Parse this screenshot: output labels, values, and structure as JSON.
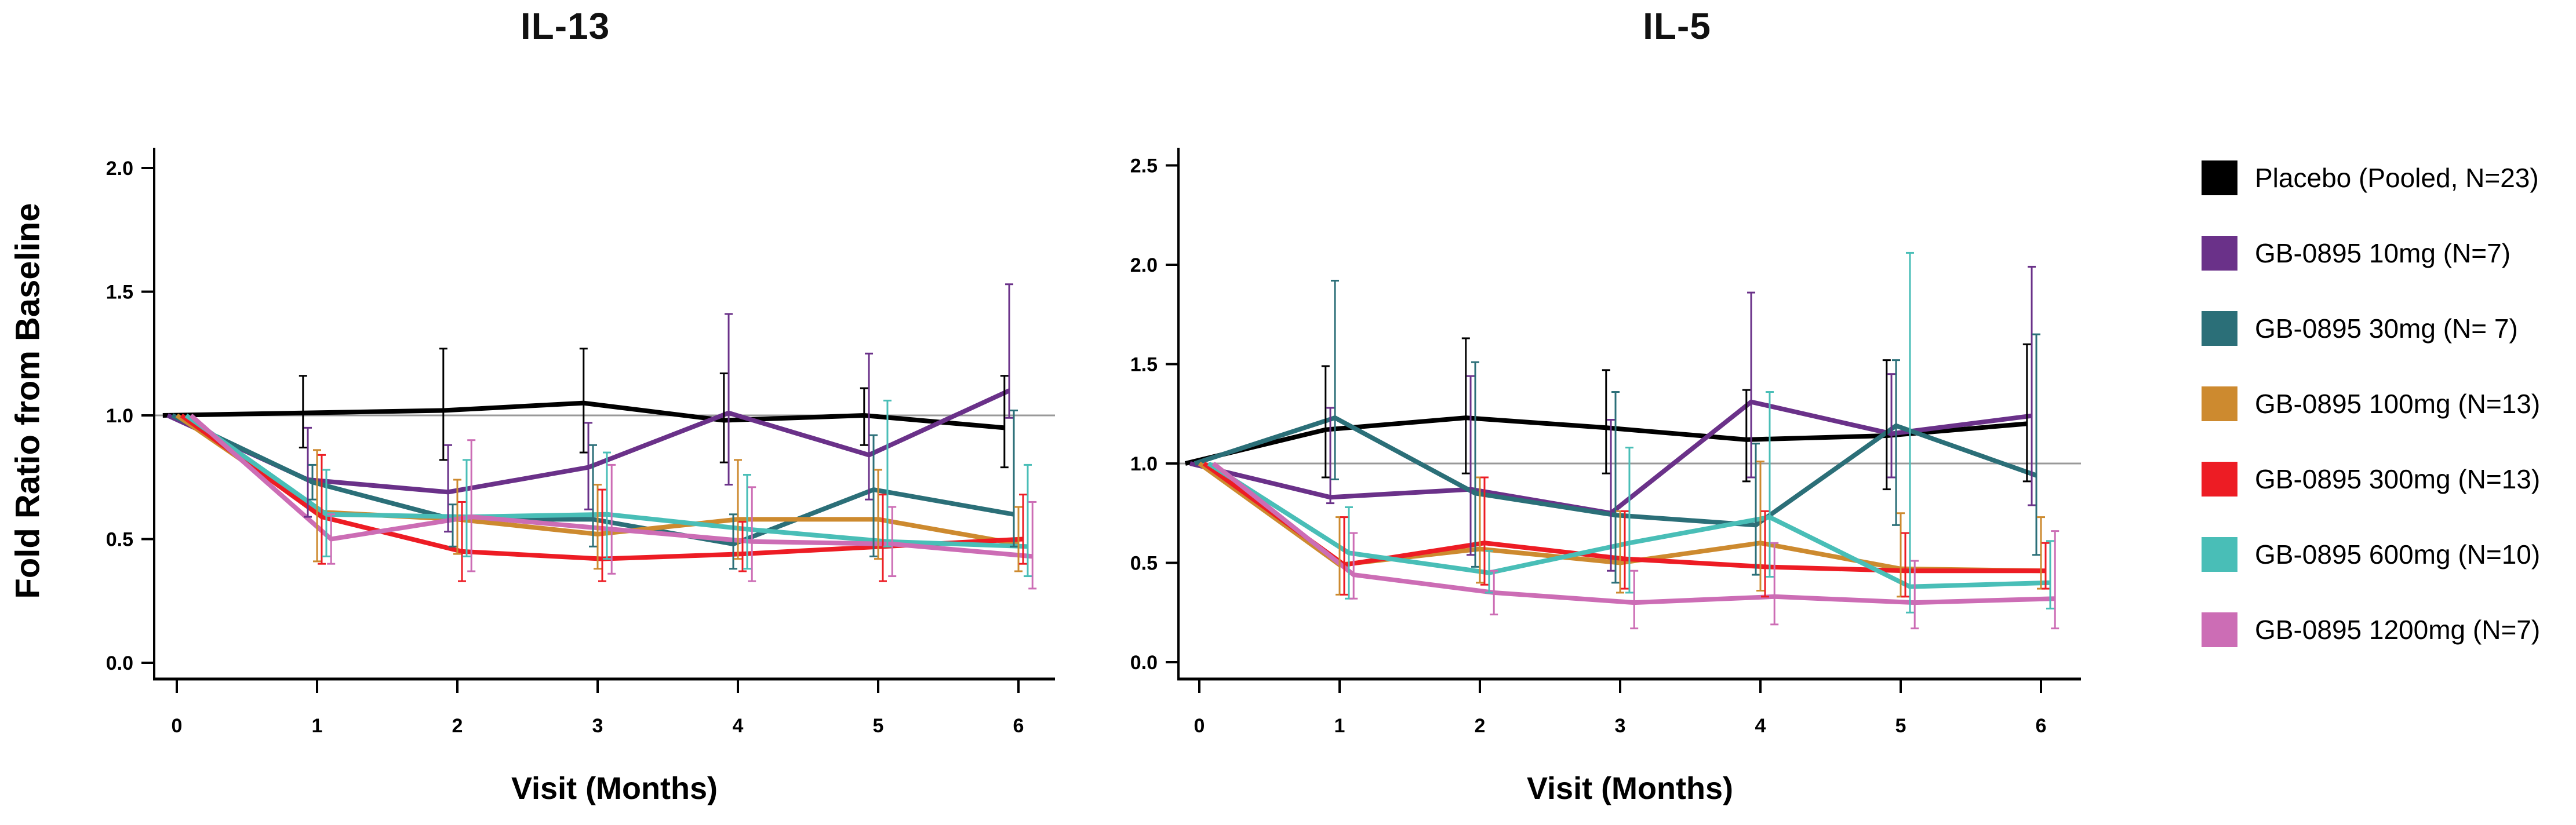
{
  "figure": {
    "y_axis_label": "Fold Ratio from Baseline",
    "background_color": "#ffffff",
    "reference_line_color": "#999999",
    "axis_color": "#000000"
  },
  "legend": {
    "items": [
      {
        "key": "placebo",
        "label": "Placebo (Pooled, N=23)",
        "color": "#000000"
      },
      {
        "key": "gb0895-10mg",
        "label": "GB-0895 10mg (N=7)",
        "color": "#6A3189"
      },
      {
        "key": "gb0895-30mg",
        "label": "GB-0895 30mg (N= 7)",
        "color": "#2B6F78"
      },
      {
        "key": "gb0895-100mg",
        "label": "GB-0895 100mg (N=13)",
        "color": "#CD8A2F"
      },
      {
        "key": "gb0895-300mg",
        "label": "GB-0895 300mg (N=13)",
        "color": "#ED1C24"
      },
      {
        "key": "gb0895-600mg",
        "label": "GB-0895 600mg (N=10)",
        "color": "#49BEB7"
      },
      {
        "key": "gb0895-1200mg",
        "label": "GB-0895 1200mg (N=7)",
        "color": "#CC6DB5"
      }
    ]
  },
  "chart_data": [
    {
      "type": "line",
      "title": "IL-13",
      "xlabel": "Visit (Months)",
      "ylabel": "Fold Ratio from Baseline",
      "x": [
        0,
        1,
        2,
        3,
        4,
        5,
        6
      ],
      "xtick_labels": [
        "0",
        "1",
        "2",
        "3",
        "4",
        "5",
        "6"
      ],
      "yticks": [
        0.0,
        0.5,
        1.0,
        1.5,
        2.0
      ],
      "ytick_labels": [
        "0.0",
        "0.5",
        "1.0",
        "1.5",
        "2.0"
      ],
      "ylim": [
        0,
        2.08
      ],
      "grid": false,
      "reference_line": 1.0,
      "series": [
        {
          "name": "Placebo (Pooled, N=23)",
          "color": "#000000",
          "values": [
            1.0,
            1.01,
            1.02,
            1.05,
            0.98,
            1.0,
            0.95
          ],
          "err_lo": [
            null,
            0.87,
            0.82,
            0.85,
            0.81,
            0.88,
            0.79
          ],
          "err_hi": [
            null,
            1.16,
            1.27,
            1.27,
            1.17,
            1.11,
            1.16
          ]
        },
        {
          "name": "GB-0895 10mg (N=7)",
          "color": "#6A3189",
          "values": [
            1.0,
            0.74,
            0.69,
            0.79,
            1.01,
            0.84,
            1.1
          ],
          "err_lo": [
            null,
            0.59,
            0.53,
            0.62,
            0.72,
            0.66,
            0.99
          ],
          "err_hi": [
            null,
            0.95,
            0.88,
            0.97,
            1.41,
            1.25,
            1.53
          ]
        },
        {
          "name": "GB-0895 30mg (N= 7)",
          "color": "#2B6F78",
          "values": [
            1.0,
            0.73,
            0.58,
            0.58,
            0.48,
            0.7,
            0.6
          ],
          "err_lo": [
            null,
            0.66,
            0.47,
            0.47,
            0.38,
            0.43,
            0.47
          ],
          "err_hi": [
            null,
            0.8,
            0.64,
            0.88,
            0.6,
            0.92,
            1.02
          ]
        },
        {
          "name": "GB-0895 100mg (N=13)",
          "color": "#CD8A2F",
          "values": [
            1.0,
            0.61,
            0.58,
            0.52,
            0.58,
            0.58,
            0.48
          ],
          "err_lo": [
            null,
            0.41,
            0.44,
            0.38,
            0.42,
            0.42,
            0.37
          ],
          "err_hi": [
            null,
            0.86,
            0.74,
            0.72,
            0.82,
            0.78,
            0.63
          ]
        },
        {
          "name": "GB-0895 300mg (N=13)",
          "color": "#ED1C24",
          "values": [
            1.0,
            0.59,
            0.45,
            0.42,
            0.44,
            0.47,
            0.5
          ],
          "err_lo": [
            null,
            0.4,
            0.33,
            0.33,
            0.37,
            0.33,
            0.4
          ],
          "err_hi": [
            null,
            0.84,
            0.65,
            0.7,
            0.57,
            0.68,
            0.68
          ]
        },
        {
          "name": "GB-0895 600mg (N=10)",
          "color": "#49BEB7",
          "values": [
            1.0,
            0.6,
            0.59,
            0.6,
            0.54,
            0.49,
            0.47
          ],
          "err_lo": [
            null,
            0.43,
            0.43,
            0.42,
            0.38,
            0.47,
            0.35
          ],
          "err_hi": [
            null,
            0.78,
            0.82,
            0.85,
            0.76,
            1.06,
            0.8
          ]
        },
        {
          "name": "GB-0895 1200mg (N=7)",
          "color": "#CC6DB5",
          "values": [
            1.0,
            0.5,
            0.59,
            0.54,
            0.49,
            0.48,
            0.43
          ],
          "err_lo": [
            null,
            0.4,
            0.37,
            0.36,
            0.33,
            0.35,
            0.3
          ],
          "err_hi": [
            null,
            0.6,
            0.9,
            0.8,
            0.71,
            0.63,
            0.65
          ]
        }
      ]
    },
    {
      "type": "line",
      "title": "IL-5",
      "xlabel": "Visit (Months)",
      "ylabel": "Fold Ratio from Baseline",
      "x": [
        0,
        1,
        2,
        3,
        4,
        5,
        6
      ],
      "xtick_labels": [
        "0",
        "1",
        "2",
        "3",
        "4",
        "5",
        "6"
      ],
      "yticks": [
        0.0,
        0.5,
        1.0,
        1.5,
        2.0,
        2.5
      ],
      "ytick_labels": [
        "0.0",
        "0.5",
        "1.0",
        "1.5",
        "2.0",
        "2.5"
      ],
      "ylim": [
        0,
        2.59
      ],
      "grid": false,
      "reference_line": 1.0,
      "series": [
        {
          "name": "Placebo (Pooled, N=23)",
          "color": "#000000",
          "values": [
            1.0,
            1.17,
            1.23,
            1.18,
            1.12,
            1.14,
            1.2
          ],
          "err_lo": [
            null,
            0.93,
            0.95,
            0.95,
            0.91,
            0.87,
            0.91
          ],
          "err_hi": [
            null,
            1.49,
            1.63,
            1.47,
            1.37,
            1.52,
            1.6
          ]
        },
        {
          "name": "GB-0895 10mg (N=7)",
          "color": "#6A3189",
          "values": [
            1.0,
            0.83,
            0.87,
            0.75,
            1.31,
            1.15,
            1.24
          ],
          "err_lo": [
            null,
            0.8,
            0.54,
            0.46,
            0.93,
            0.93,
            0.79
          ],
          "err_hi": [
            null,
            1.28,
            1.44,
            1.22,
            1.86,
            1.45,
            1.99
          ]
        },
        {
          "name": "GB-0895 30mg (N= 7)",
          "color": "#2B6F78",
          "values": [
            1.0,
            1.23,
            0.85,
            0.74,
            0.69,
            1.19,
            0.94
          ],
          "err_lo": [
            null,
            0.92,
            0.48,
            0.4,
            0.44,
            0.69,
            0.54
          ],
          "err_hi": [
            null,
            1.92,
            1.51,
            1.36,
            1.1,
            1.52,
            1.65
          ]
        },
        {
          "name": "GB-0895 100mg (N=13)",
          "color": "#CD8A2F",
          "values": [
            1.0,
            0.49,
            0.57,
            0.5,
            0.6,
            0.47,
            0.46
          ],
          "err_lo": [
            null,
            0.34,
            0.4,
            0.35,
            0.36,
            0.33,
            0.37
          ],
          "err_hi": [
            null,
            0.73,
            0.93,
            0.76,
            1.01,
            0.75,
            0.73
          ]
        },
        {
          "name": "GB-0895 300mg (N=13)",
          "color": "#ED1C24",
          "values": [
            1.0,
            0.49,
            0.6,
            0.52,
            0.48,
            0.46,
            0.46
          ],
          "err_lo": [
            null,
            0.34,
            0.39,
            0.37,
            0.33,
            0.33,
            0.37
          ],
          "err_hi": [
            null,
            0.73,
            0.93,
            0.76,
            0.76,
            0.65,
            0.6
          ]
        },
        {
          "name": "GB-0895 600mg (N=10)",
          "color": "#49BEB7",
          "values": [
            1.0,
            0.55,
            0.45,
            0.6,
            0.73,
            0.38,
            0.4
          ],
          "err_lo": [
            null,
            0.32,
            0.35,
            0.35,
            0.43,
            0.25,
            0.27
          ],
          "err_hi": [
            null,
            0.78,
            0.56,
            1.08,
            1.36,
            2.06,
            0.61
          ]
        },
        {
          "name": "GB-0895 1200mg (N=7)",
          "color": "#CC6DB5",
          "values": [
            1.0,
            0.44,
            0.35,
            0.3,
            0.33,
            0.3,
            0.32
          ],
          "err_lo": [
            null,
            0.32,
            0.24,
            0.17,
            0.19,
            0.17,
            0.17
          ],
          "err_hi": [
            null,
            0.65,
            0.46,
            0.46,
            0.6,
            0.51,
            0.66
          ]
        }
      ]
    }
  ]
}
